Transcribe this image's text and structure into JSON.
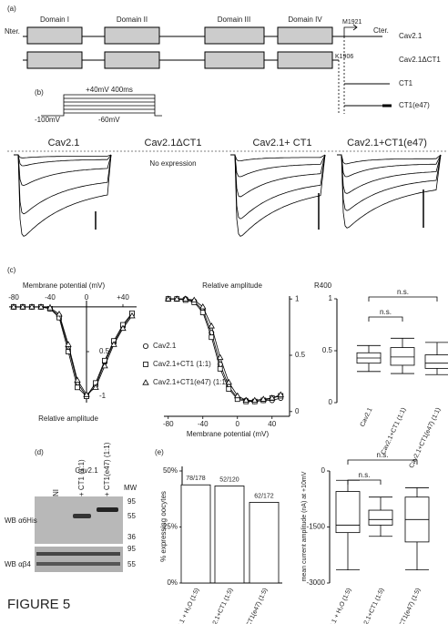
{
  "figure_label": "FIGURE 5",
  "panel_a": {
    "label": "(a)",
    "n_term": "Nter.",
    "c_term": "Cter.",
    "domains": [
      "Domain I",
      "Domain II",
      "Domain III",
      "Domain IV"
    ],
    "residue_m": "M1921",
    "residue_k": "K1906",
    "constructs": [
      "Cav2.1",
      "Cav2.1ΔCT1",
      "CT1",
      "CT1(e47)"
    ]
  },
  "panel_b": {
    "label": "(b)",
    "protocol": {
      "step": "+40mV 400ms",
      "hold": "-100mV",
      "start": "-60mV"
    },
    "traces": [
      "Cav2.1",
      "Cav2.1ΔCT1",
      "Cav2.1+ CT1",
      "Cav2.1+CT1(e47)"
    ],
    "no_expression": "No expression"
  },
  "panel_c": {
    "label": "(c)",
    "iv": {
      "type": "line",
      "x_label": "Membrane potential (mV)",
      "y_label": "Relative amplitude",
      "x": [
        -80,
        -70,
        -60,
        -50,
        -40,
        -30,
        -20,
        -10,
        0,
        10,
        20,
        30,
        40,
        50
      ],
      "xlim": [
        -85,
        55
      ],
      "xticks": [
        -80,
        -40,
        0,
        {
          "value": 40,
          "label": "+40"
        }
      ],
      "ylim": [
        -1.05,
        0.05
      ],
      "yticks": [
        {
          "value": -0.5,
          "label": "0.5"
        },
        -1
      ],
      "series": [
        {
          "name": "Cav2.1",
          "marker": "circle",
          "values": [
            0,
            0,
            0,
            0,
            -0.02,
            -0.1,
            -0.45,
            -0.85,
            -1,
            -0.88,
            -0.62,
            -0.4,
            -0.22,
            -0.08
          ]
        },
        {
          "name": "Cav2.1+CT1 (1:1)",
          "marker": "square",
          "values": [
            0,
            0,
            0,
            0,
            -0.02,
            -0.12,
            -0.5,
            -0.9,
            -1,
            -0.85,
            -0.6,
            -0.38,
            -0.2,
            -0.07
          ]
        },
        {
          "name": "Cav2.1+CT1(e47) (1:1)",
          "marker": "triangle",
          "values": [
            0,
            0,
            0,
            0,
            -0.01,
            -0.08,
            -0.42,
            -0.82,
            -0.98,
            -0.9,
            -0.66,
            -0.42,
            -0.24,
            -0.1
          ]
        }
      ]
    },
    "inactivation": {
      "type": "line",
      "x_label": "Membrane potential (mV)",
      "y_label": "Relative amplitude",
      "x": [
        -80,
        -70,
        -60,
        -50,
        -40,
        -30,
        -20,
        -10,
        0,
        10,
        20,
        30,
        40,
        50
      ],
      "xlim": [
        -85,
        55
      ],
      "xticks": [
        -80,
        -40,
        0,
        40
      ],
      "ylim": [
        -0.05,
        1.05
      ],
      "yticks": [
        0,
        0.5,
        1
      ],
      "series": [
        {
          "marker": "circle",
          "values": [
            1,
            1,
            1,
            0.98,
            0.9,
            0.7,
            0.42,
            0.22,
            0.12,
            0.1,
            0.09,
            0.1,
            0.1,
            0.12
          ]
        },
        {
          "marker": "square",
          "values": [
            1,
            1,
            0.99,
            0.97,
            0.88,
            0.66,
            0.38,
            0.2,
            0.11,
            0.09,
            0.09,
            0.1,
            0.12,
            0.14
          ]
        },
        {
          "marker": "triangle",
          "values": [
            1,
            1,
            1,
            0.99,
            0.93,
            0.76,
            0.48,
            0.26,
            0.14,
            0.1,
            0.1,
            0.11,
            0.12,
            0.15
          ]
        }
      ]
    },
    "r400": {
      "type": "box",
      "y_label": "R400",
      "categories": [
        "Cav2.1",
        "Cav2.1+CT1 (1:1)",
        "Cav2.1+CT1(e47) (1:1)"
      ],
      "ylim": [
        0,
        1
      ],
      "yticks": [
        0,
        0.5,
        1
      ],
      "boxes": [
        {
          "whisker_low": 0.3,
          "q1": 0.38,
          "median": 0.43,
          "q3": 0.48,
          "whisker_high": 0.55
        },
        {
          "whisker_low": 0.28,
          "q1": 0.36,
          "median": 0.44,
          "q3": 0.53,
          "whisker_high": 0.62
        },
        {
          "whisker_low": 0.27,
          "q1": 0.33,
          "median": 0.38,
          "q3": 0.46,
          "whisker_high": 0.58
        }
      ],
      "significance": [
        "n.s.",
        "n.s."
      ]
    }
  },
  "panel_d": {
    "label": "(d)",
    "title": "Cav2.1",
    "lanes": [
      "NI",
      "+ CT1 (1:1)",
      "+ CT1(e47) (1:1)"
    ],
    "mw_label": "MW",
    "blots": [
      {
        "label": "WB α6His",
        "mw": [
          95,
          55,
          36
        ]
      },
      {
        "label": "WB αβ4",
        "mw": [
          95,
          55
        ]
      }
    ]
  },
  "panel_e": {
    "label": "(e)",
    "percent": {
      "type": "bar",
      "y_label": "% expressing oocytes",
      "categories": [
        "Cav2.1 + H₂O (1:5)",
        "Cav2.1+CT1 (1:5)",
        "Cav2.1+CT1(e47) (1:5)"
      ],
      "values": [
        43.8,
        43.3,
        36.0
      ],
      "value_labels": [
        "78/178",
        "52/120",
        "62/172"
      ],
      "ylim": [
        0,
        50
      ],
      "yticks": [
        {
          "value": 0,
          "label": "0%"
        },
        {
          "value": 25,
          "label": "25%"
        },
        {
          "value": 50,
          "label": "50%"
        }
      ]
    },
    "current": {
      "type": "box",
      "y_label": "mean current amplitude (nA) at +10mV",
      "categories": [
        "Cav2.1 + H₂O (1:5)",
        "Cav2.1+CT1 (1:5)",
        "Cav2.1+CT1(e47) (1:5)"
      ],
      "ylim": [
        -3000,
        0
      ],
      "yticks": [
        0,
        -1500,
        -3000
      ],
      "boxes": [
        {
          "whisker_low": -2650,
          "q1": -1650,
          "median": -1450,
          "q3": -550,
          "whisker_high": -250
        },
        {
          "whisker_low": -1750,
          "q1": -1450,
          "median": -1300,
          "q3": -1050,
          "whisker_high": -700
        },
        {
          "whisker_low": -2650,
          "q1": -1900,
          "median": -1300,
          "q3": -700,
          "whisker_high": -450
        }
      ],
      "significance": [
        "n.s.",
        "n.s."
      ]
    }
  }
}
